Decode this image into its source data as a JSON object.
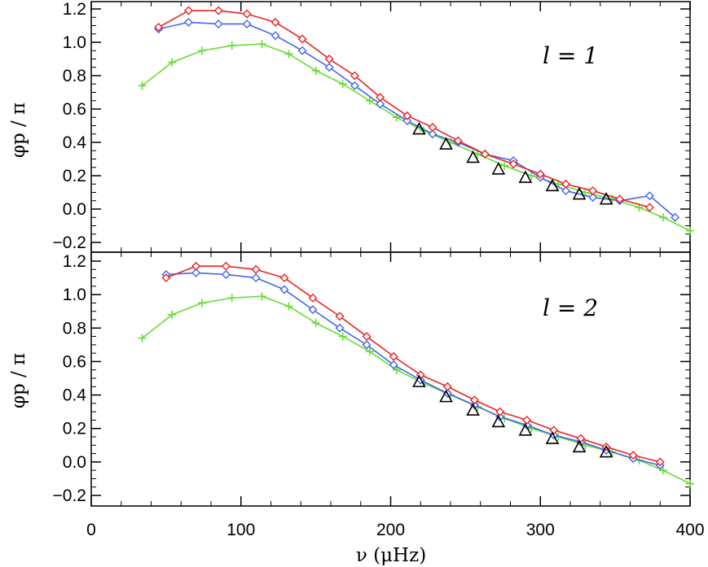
{
  "chart_data": [
    {
      "type": "line",
      "panel_label": "l = 1",
      "ylabel": "φp / π",
      "xlabel": "",
      "xlim": [
        0,
        400
      ],
      "ylim": [
        -0.25,
        1.25
      ],
      "yticks": [
        "−0.2",
        "0.0",
        "0.2",
        "0.4",
        "0.6",
        "0.8",
        "1.0",
        "1.2"
      ],
      "ytick_values": [
        -0.2,
        0.0,
        0.2,
        0.4,
        0.6,
        0.8,
        1.0,
        1.2
      ],
      "xticks": [
        0,
        100,
        200,
        300,
        400
      ],
      "series": [
        {
          "name": "green",
          "color": "#66dd33",
          "marker": "plus",
          "x": [
            34,
            54,
            74,
            94,
            114,
            132,
            150,
            168,
            186,
            204,
            222,
            240,
            258,
            276,
            294,
            312,
            330,
            348,
            366,
            382,
            400
          ],
          "y": [
            0.74,
            0.88,
            0.95,
            0.98,
            0.99,
            0.93,
            0.83,
            0.75,
            0.65,
            0.55,
            0.47,
            0.4,
            0.33,
            0.26,
            0.2,
            0.15,
            0.1,
            0.06,
            0.01,
            -0.05,
            -0.13
          ]
        },
        {
          "name": "blue",
          "color": "#4466ee",
          "marker": "diamond",
          "x": [
            45,
            65,
            85,
            104,
            123,
            141,
            159,
            176,
            193,
            211,
            228,
            245,
            263,
            282,
            300,
            317,
            335,
            353,
            373,
            390
          ],
          "y": [
            1.08,
            1.12,
            1.11,
            1.11,
            1.04,
            0.95,
            0.85,
            0.74,
            0.63,
            0.53,
            0.45,
            0.4,
            0.33,
            0.29,
            0.19,
            0.11,
            0.07,
            0.05,
            0.08,
            -0.05
          ]
        },
        {
          "name": "red",
          "color": "#ee2222",
          "marker": "diamond",
          "x": [
            45,
            65,
            85,
            104,
            123,
            141,
            159,
            176,
            193,
            211,
            228,
            245,
            263,
            282,
            300,
            317,
            335,
            353,
            373
          ],
          "y": [
            1.09,
            1.19,
            1.19,
            1.17,
            1.12,
            1.02,
            0.9,
            0.8,
            0.67,
            0.56,
            0.49,
            0.41,
            0.33,
            0.27,
            0.21,
            0.15,
            0.11,
            0.06,
            0.01
          ]
        }
      ],
      "triangles": {
        "name": "triangles",
        "x": [
          219,
          237,
          255,
          272,
          290,
          308,
          326,
          344
        ],
        "y": [
          0.48,
          0.39,
          0.31,
          0.24,
          0.19,
          0.14,
          0.09,
          0.06
        ]
      }
    },
    {
      "type": "line",
      "panel_label": "l = 2",
      "ylabel": "φp / π",
      "xlabel": "ν (μHz)",
      "xlim": [
        0,
        400
      ],
      "ylim": [
        -0.25,
        1.25
      ],
      "yticks": [
        "−0.2",
        "0.0",
        "0.2",
        "0.4",
        "0.6",
        "0.8",
        "1.0",
        "1.2"
      ],
      "ytick_values": [
        -0.2,
        0.0,
        0.2,
        0.4,
        0.6,
        0.8,
        1.0,
        1.2
      ],
      "xticks": [
        0,
        100,
        200,
        300,
        400
      ],
      "series": [
        {
          "name": "green",
          "color": "#66dd33",
          "marker": "plus",
          "x": [
            34,
            54,
            74,
            94,
            114,
            132,
            150,
            168,
            186,
            204,
            222,
            240,
            258,
            276,
            294,
            312,
            330,
            348,
            366,
            382,
            400
          ],
          "y": [
            0.74,
            0.88,
            0.95,
            0.98,
            0.99,
            0.93,
            0.83,
            0.75,
            0.66,
            0.55,
            0.47,
            0.4,
            0.33,
            0.26,
            0.2,
            0.15,
            0.1,
            0.06,
            0.01,
            -0.05,
            -0.13
          ]
        },
        {
          "name": "blue",
          "color": "#4466ee",
          "marker": "diamond",
          "x": [
            50,
            70,
            90,
            110,
            129,
            148,
            166,
            184,
            202,
            220,
            238,
            256,
            273,
            291,
            309,
            327,
            344,
            362,
            380
          ],
          "y": [
            1.12,
            1.13,
            1.12,
            1.1,
            1.03,
            0.91,
            0.8,
            0.7,
            0.58,
            0.49,
            0.41,
            0.34,
            0.27,
            0.22,
            0.16,
            0.12,
            0.07,
            0.02,
            -0.02
          ]
        },
        {
          "name": "red",
          "color": "#ee2222",
          "marker": "diamond",
          "x": [
            50,
            70,
            90,
            110,
            129,
            148,
            166,
            184,
            202,
            220,
            238,
            256,
            273,
            291,
            309,
            327,
            344,
            362,
            380
          ],
          "y": [
            1.1,
            1.17,
            1.17,
            1.15,
            1.1,
            0.98,
            0.87,
            0.75,
            0.63,
            0.52,
            0.45,
            0.37,
            0.3,
            0.25,
            0.19,
            0.14,
            0.09,
            0.04,
            0.0
          ]
        }
      ],
      "triangles": {
        "name": "triangles",
        "x": [
          219,
          237,
          255,
          272,
          290,
          308,
          326,
          344
        ],
        "y": [
          0.48,
          0.39,
          0.31,
          0.24,
          0.19,
          0.14,
          0.09,
          0.06
        ]
      }
    }
  ]
}
